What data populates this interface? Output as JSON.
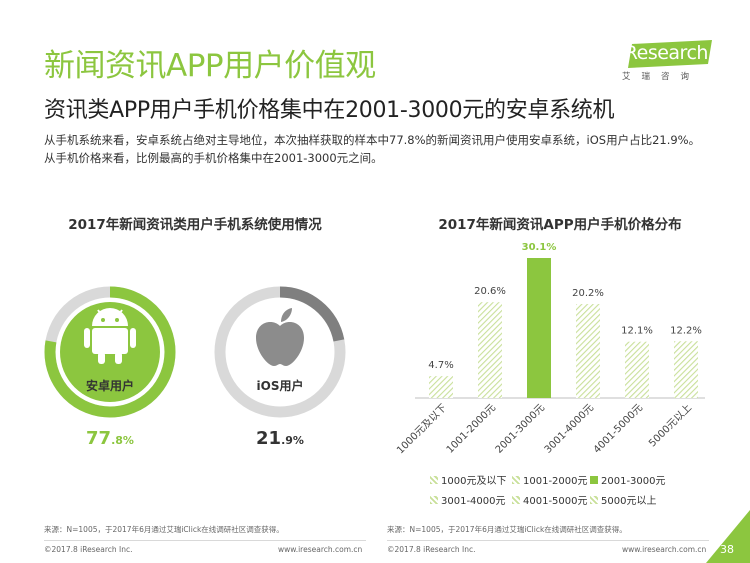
{
  "header": {
    "title": "新闻资讯APP用户价值观",
    "subtitle": "资讯类APP用户手机价格集中在2001-3000元的安卓系统机",
    "description": "从手机系统来看，安卓系统占绝对主导地位，本次抽样获取的样本中77.8%的新闻资讯用户使用安卓系统，iOS用户占比21.9%。从手机价格来看，比例最高的手机价格集中在2001-3000元之间。"
  },
  "logo": {
    "main": "iResearch",
    "sub": "艾瑞咨询"
  },
  "colors": {
    "green": "#8cc63f",
    "gray": "#7f7f7f",
    "light_gray": "#d9d9d9"
  },
  "chart_data": [
    {
      "type": "pie",
      "title": "2017年新闻资讯类用户手机系统使用情况",
      "slices": [
        {
          "name": "安卓用户",
          "value": 77.8,
          "display_int": "77",
          "display_dec": ".8%",
          "icon": "android-icon"
        },
        {
          "name": "iOS用户",
          "value": 21.9,
          "display_int": "21",
          "display_dec": ".9%",
          "icon": "apple-icon"
        }
      ]
    },
    {
      "type": "bar",
      "title": "2017年新闻资讯APP用户手机价格分布",
      "categories": [
        "1000元及以下",
        "1001-2000元",
        "2001-3000元",
        "3001-4000元",
        "4001-5000元",
        "5000元以上"
      ],
      "values": [
        4.7,
        20.6,
        30.1,
        20.2,
        12.1,
        12.2
      ],
      "value_labels": [
        "4.7%",
        "20.6%",
        "30.1%",
        "20.2%",
        "12.1%",
        "12.2%"
      ],
      "highlight_index": 2,
      "legend": [
        "1000元及以下",
        "1001-2000元",
        "2001-3000元",
        "3001-4000元",
        "4001-5000元",
        "5000元以上"
      ],
      "ylim": [
        0,
        30.1
      ]
    }
  ],
  "footer": {
    "source_left": "来源：N=1005，于2017年6月通过艾瑞iClick在线调研社区调查获得。",
    "source_right": "来源：N=1005，于2017年6月通过艾瑞iClick在线调研社区调查获得。",
    "copyright_left": "©2017.8 iResearch Inc.",
    "url_left": "www.iresearch.com.cn",
    "copyright_right": "©2017.8 iResearch Inc.",
    "url_right": "www.iresearch.com.cn",
    "page_number": "38"
  }
}
